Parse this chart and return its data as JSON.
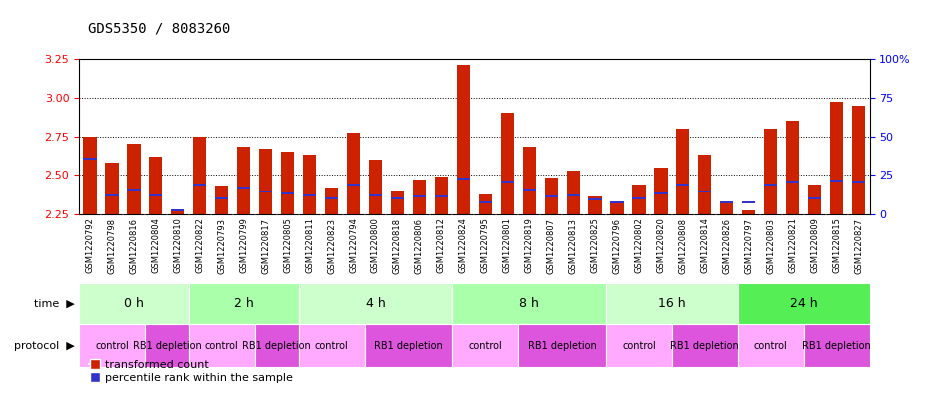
{
  "title": "GDS5350 / 8083260",
  "samples": [
    "GSM1220792",
    "GSM1220798",
    "GSM1220816",
    "GSM1220804",
    "GSM1220810",
    "GSM1220822",
    "GSM1220793",
    "GSM1220799",
    "GSM1220817",
    "GSM1220805",
    "GSM1220811",
    "GSM1220823",
    "GSM1220794",
    "GSM1220800",
    "GSM1220818",
    "GSM1220806",
    "GSM1220812",
    "GSM1220824",
    "GSM1220795",
    "GSM1220801",
    "GSM1220819",
    "GSM1220807",
    "GSM1220813",
    "GSM1220825",
    "GSM1220796",
    "GSM1220802",
    "GSM1220820",
    "GSM1220808",
    "GSM1220814",
    "GSM1220826",
    "GSM1220797",
    "GSM1220803",
    "GSM1220821",
    "GSM1220809",
    "GSM1220815",
    "GSM1220827"
  ],
  "bar_heights": [
    2.75,
    2.58,
    2.7,
    2.62,
    2.27,
    2.75,
    2.43,
    2.68,
    2.67,
    2.65,
    2.63,
    2.42,
    2.77,
    2.6,
    2.4,
    2.47,
    2.49,
    3.21,
    2.38,
    2.9,
    2.68,
    2.48,
    2.53,
    2.37,
    2.33,
    2.44,
    2.55,
    2.8,
    2.63,
    2.32,
    2.28,
    2.8,
    2.85,
    2.44,
    2.97,
    2.95
  ],
  "blue_pos": [
    0.35,
    0.12,
    0.15,
    0.12,
    0.02,
    0.18,
    0.1,
    0.16,
    0.14,
    0.13,
    0.12,
    0.1,
    0.18,
    0.12,
    0.1,
    0.11,
    0.11,
    0.22,
    0.07,
    0.2,
    0.15,
    0.11,
    0.12,
    0.09,
    0.07,
    0.1,
    0.13,
    0.18,
    0.14,
    0.07,
    0.07,
    0.18,
    0.2,
    0.1,
    0.21,
    0.2
  ],
  "ymin": 2.25,
  "ymax": 3.25,
  "yticks_left": [
    2.25,
    2.5,
    2.75,
    3.0,
    3.25
  ],
  "yticks_right_vals": [
    0,
    25,
    50,
    75,
    100
  ],
  "yticks_right_labels": [
    "0",
    "25",
    "50",
    "75",
    "100%"
  ],
  "bar_color": "#cc2200",
  "blue_color": "#3333cc",
  "grid_color": "#000000",
  "grid_yticks": [
    2.5,
    2.75,
    3.0
  ],
  "time_groups": [
    {
      "label": "0 h",
      "start": 0,
      "end": 5,
      "color": "#ccffcc"
    },
    {
      "label": "2 h",
      "start": 5,
      "end": 10,
      "color": "#aaffaa"
    },
    {
      "label": "4 h",
      "start": 10,
      "end": 17,
      "color": "#ccffcc"
    },
    {
      "label": "8 h",
      "start": 17,
      "end": 24,
      "color": "#aaffaa"
    },
    {
      "label": "16 h",
      "start": 24,
      "end": 30,
      "color": "#ccffcc"
    },
    {
      "label": "24 h",
      "start": 30,
      "end": 36,
      "color": "#55ee55"
    }
  ],
  "protocol_groups": [
    {
      "label": "control",
      "start": 0,
      "end": 3,
      "type": "control"
    },
    {
      "label": "RB1 depletion",
      "start": 3,
      "end": 5,
      "type": "depletion"
    },
    {
      "label": "control",
      "start": 5,
      "end": 8,
      "type": "control"
    },
    {
      "label": "RB1 depletion",
      "start": 8,
      "end": 10,
      "type": "depletion"
    },
    {
      "label": "control",
      "start": 10,
      "end": 13,
      "type": "control"
    },
    {
      "label": "RB1 depletion",
      "start": 13,
      "end": 17,
      "type": "depletion"
    },
    {
      "label": "control",
      "start": 17,
      "end": 20,
      "type": "control"
    },
    {
      "label": "RB1 depletion",
      "start": 20,
      "end": 24,
      "type": "depletion"
    },
    {
      "label": "control",
      "start": 24,
      "end": 27,
      "type": "control"
    },
    {
      "label": "RB1 depletion",
      "start": 27,
      "end": 30,
      "type": "depletion"
    },
    {
      "label": "control",
      "start": 30,
      "end": 33,
      "type": "control"
    },
    {
      "label": "RB1 depletion",
      "start": 33,
      "end": 36,
      "type": "depletion"
    }
  ],
  "control_color": "#ffaaff",
  "depletion_color": "#dd55dd",
  "time_label": "time",
  "protocol_label": "protocol",
  "legend_red": "transformed count",
  "legend_blue": "percentile rank within the sample"
}
